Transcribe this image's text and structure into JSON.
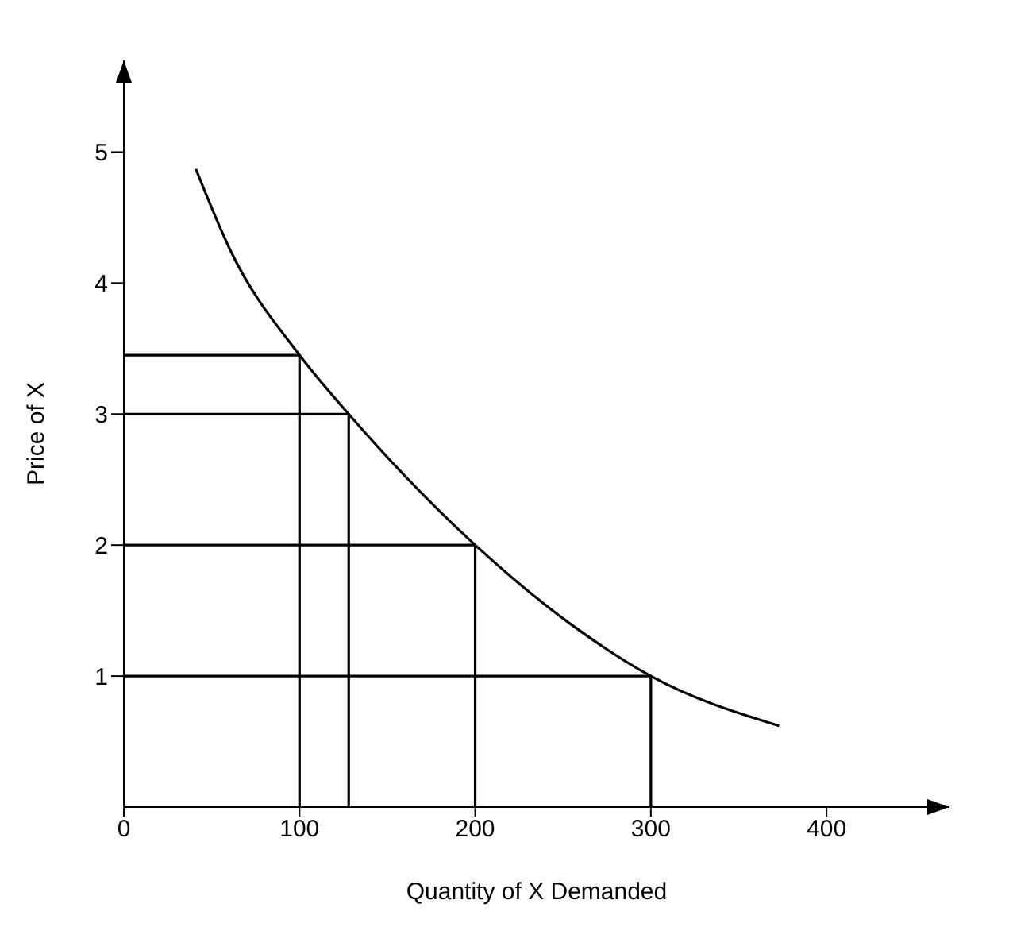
{
  "chart_data": {
    "type": "line",
    "xlabel": "Quantity of X Demanded",
    "ylabel": "Price of X",
    "xlim": [
      0,
      470
    ],
    "ylim": [
      0,
      5.7
    ],
    "xticks": [
      0,
      100,
      200,
      300,
      400
    ],
    "yticks": [
      1,
      2,
      3,
      4,
      5
    ],
    "series": [
      {
        "color": "#000000",
        "x": [
          41,
          61,
          100,
          128,
          200,
          254,
          300,
          373
        ],
        "values": [
          4.87,
          4.24,
          3.45,
          3,
          2,
          1.4,
          1,
          0.62
        ]
      },
      {
        "color": "#000000",
        "x": [
          0,
          100,
          100
        ],
        "values": [
          3.45,
          3.45,
          0
        ]
      },
      {
        "color": "#000000",
        "x": [
          0,
          128,
          128
        ],
        "values": [
          3,
          3,
          0
        ]
      },
      {
        "color": "#000000",
        "x": [
          0,
          200,
          200
        ],
        "values": [
          2,
          2,
          0
        ]
      },
      {
        "color": "#000000",
        "x": [
          0,
          300,
          300
        ],
        "values": [
          1,
          1,
          0
        ]
      }
    ]
  }
}
